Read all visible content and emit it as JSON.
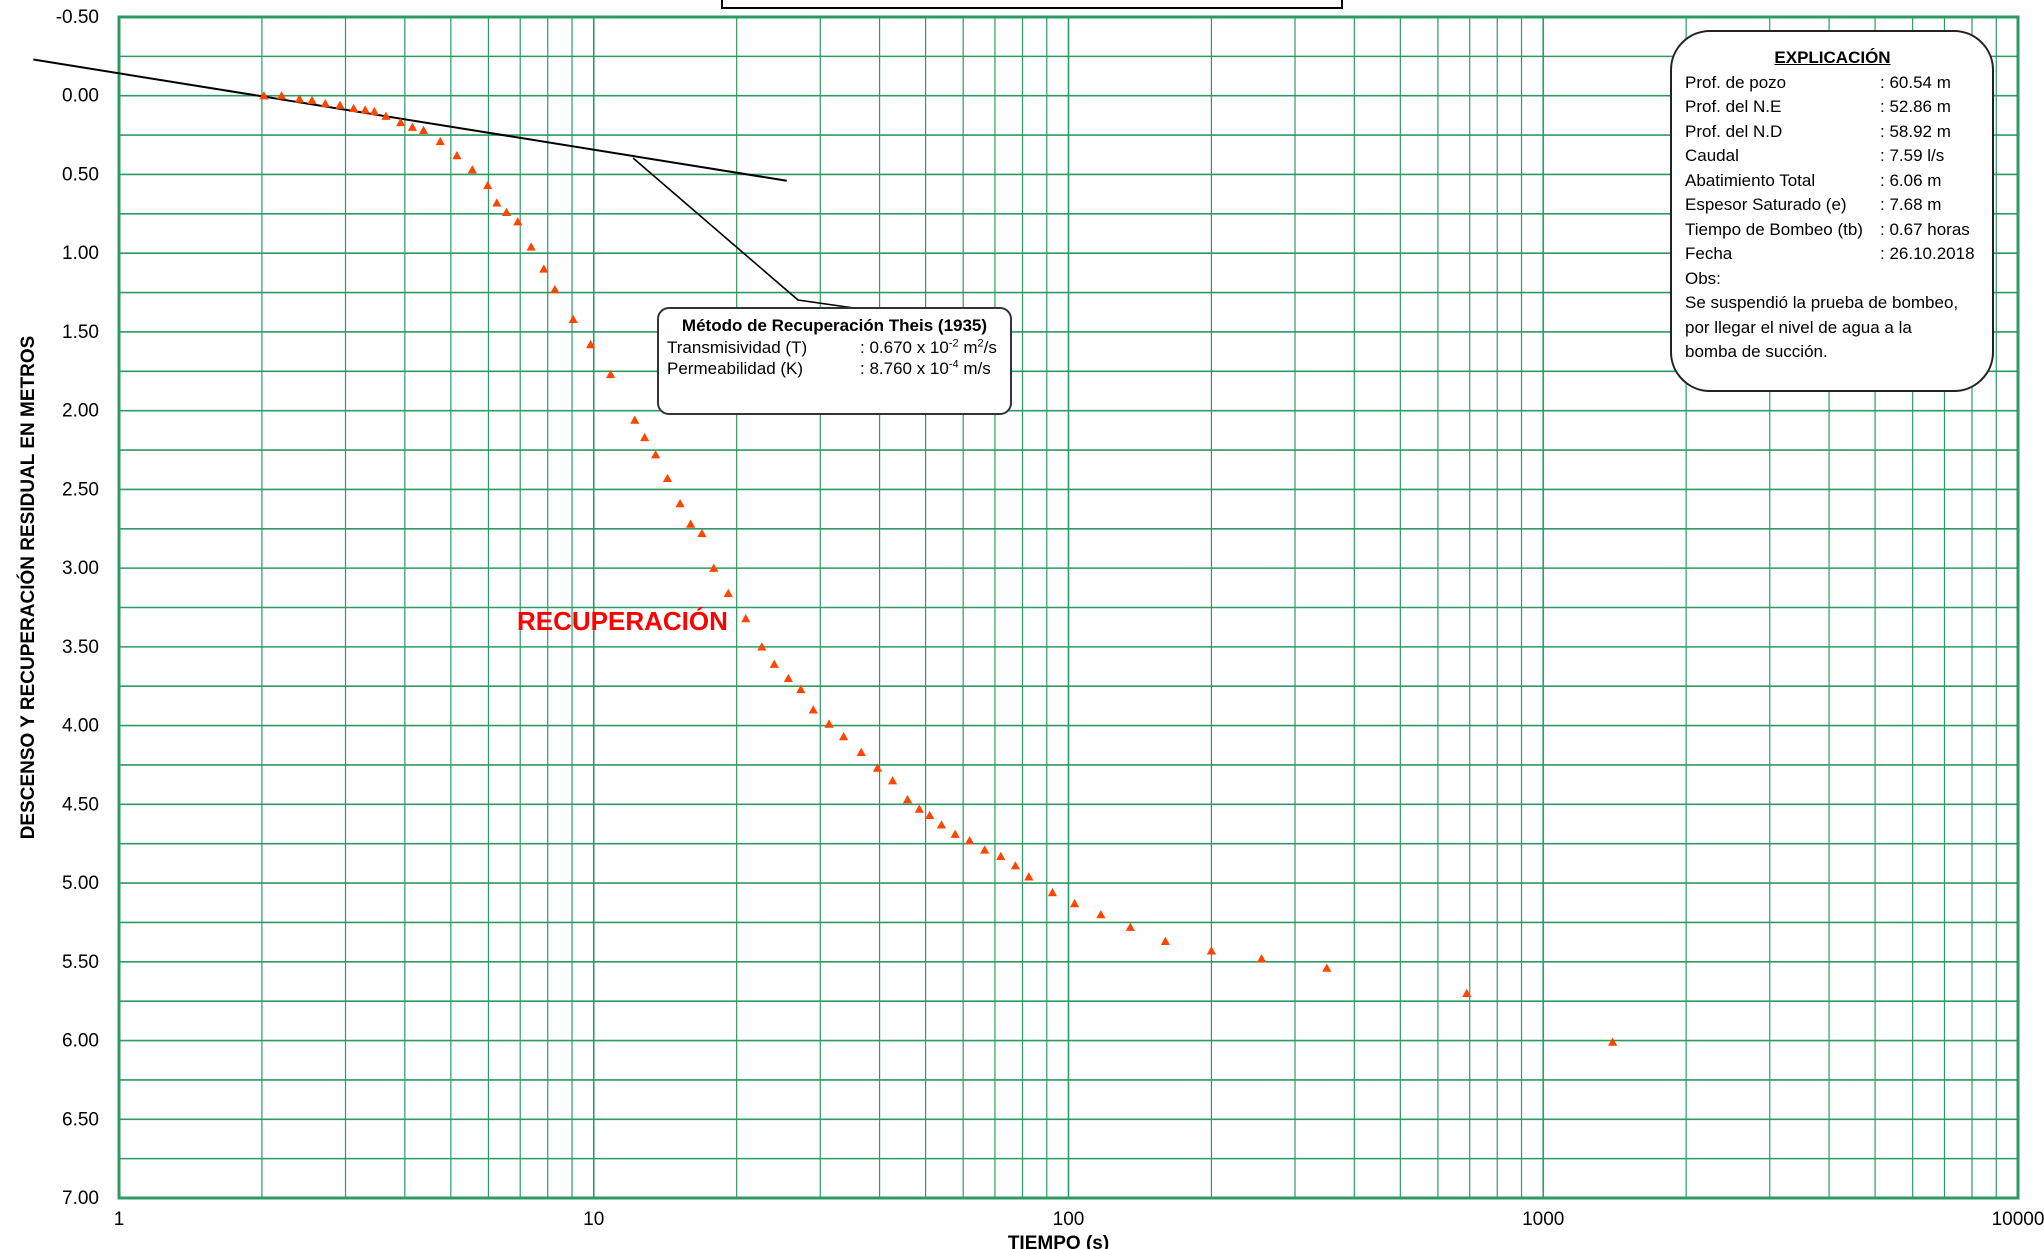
{
  "chart_data": {
    "type": "scatter",
    "title": "",
    "xlabel": "TIEMPO (s)",
    "ylabel": "DESCENSO Y RECUPERACIÓN RESIDUAL EN METROS",
    "x_scale": "log",
    "xlim": [
      1,
      10000
    ],
    "ylim": [
      -0.5,
      7.0
    ],
    "y_inverted": true,
    "x_ticks": [
      "1",
      "10",
      "100",
      "1000",
      "10000"
    ],
    "y_ticks": [
      "-0.50",
      "0.00",
      "0.50",
      "1.00",
      "1.50",
      "2.00",
      "2.50",
      "3.00",
      "3.50",
      "4.00",
      "4.50",
      "5.00",
      "5.50",
      "6.00",
      "6.50",
      "7.00"
    ],
    "grid": true,
    "grid_color": "#2e9a63",
    "marker": "triangle",
    "marker_color": "#ff4500",
    "annotation": "RECUPERACIÓN",
    "annotation_color": "#ff0000",
    "fit_line": {
      "x": [
        0.66,
        25.5
      ],
      "y": [
        -0.23,
        0.54
      ]
    },
    "series": [
      {
        "points": [
          [
            2.02,
            0.0
          ],
          [
            2.2,
            0.0
          ],
          [
            2.4,
            0.02
          ],
          [
            2.55,
            0.03
          ],
          [
            2.72,
            0.05
          ],
          [
            2.92,
            0.06
          ],
          [
            3.12,
            0.08
          ],
          [
            3.3,
            0.09
          ],
          [
            3.45,
            0.1
          ],
          [
            3.65,
            0.13
          ],
          [
            3.92,
            0.17
          ],
          [
            4.15,
            0.2
          ],
          [
            4.38,
            0.22
          ],
          [
            4.75,
            0.29
          ],
          [
            5.15,
            0.38
          ],
          [
            5.55,
            0.47
          ],
          [
            5.98,
            0.57
          ],
          [
            6.25,
            0.68
          ],
          [
            6.55,
            0.74
          ],
          [
            6.92,
            0.8
          ],
          [
            7.38,
            0.96
          ],
          [
            7.85,
            1.1
          ],
          [
            8.28,
            1.23
          ],
          [
            9.05,
            1.42
          ],
          [
            9.85,
            1.58
          ],
          [
            10.85,
            1.77
          ],
          [
            12.2,
            2.06
          ],
          [
            12.8,
            2.17
          ],
          [
            13.5,
            2.28
          ],
          [
            14.3,
            2.43
          ],
          [
            15.2,
            2.59
          ],
          [
            16.0,
            2.72
          ],
          [
            16.9,
            2.78
          ],
          [
            17.9,
            3.0
          ],
          [
            19.2,
            3.16
          ],
          [
            20.9,
            3.32
          ],
          [
            22.6,
            3.5
          ],
          [
            24.0,
            3.61
          ],
          [
            25.7,
            3.7
          ],
          [
            27.3,
            3.77
          ],
          [
            29.0,
            3.9
          ],
          [
            31.3,
            3.99
          ],
          [
            33.6,
            4.07
          ],
          [
            36.6,
            4.17
          ],
          [
            39.6,
            4.27
          ],
          [
            42.6,
            4.35
          ],
          [
            45.8,
            4.47
          ],
          [
            48.5,
            4.53
          ],
          [
            51.0,
            4.57
          ],
          [
            54.0,
            4.63
          ],
          [
            57.7,
            4.69
          ],
          [
            61.9,
            4.73
          ],
          [
            66.6,
            4.79
          ],
          [
            72.0,
            4.83
          ],
          [
            77.3,
            4.89
          ],
          [
            82.5,
            4.96
          ],
          [
            92.5,
            5.06
          ],
          [
            103.0,
            5.13
          ],
          [
            117.0,
            5.2
          ],
          [
            135.0,
            5.28
          ],
          [
            160.0,
            5.37
          ],
          [
            200.0,
            5.43
          ],
          [
            255.0,
            5.48
          ],
          [
            350.0,
            5.54
          ],
          [
            690.0,
            5.7
          ],
          [
            1400.0,
            6.01
          ]
        ]
      }
    ]
  },
  "theis_box": {
    "title": "Método de Recuperación  Theis (1935)",
    "rows": [
      {
        "label": "Transmisividad (T)",
        "value_prefix": ": 0.670 x 10",
        "exp": "-2",
        "unit_a": " m",
        "unit_exp": "2",
        "unit_b": "/s"
      },
      {
        "label": "Permeabilidad (K)",
        "value_prefix": ": 8.760 x 10",
        "exp": "-4",
        "unit_a": " m/s",
        "unit_exp": "",
        "unit_b": ""
      }
    ]
  },
  "explanation": {
    "title": "EXPLICACIÓN",
    "rows": [
      {
        "label": "Prof. de pozo",
        "value": ": 60.54  m"
      },
      {
        "label": "Prof. del N.E",
        "value": ": 52.86  m"
      },
      {
        "label": "Prof. del N.D",
        "value": ": 58.92  m"
      },
      {
        "label": "Caudal",
        "value": ": 7.59  l/s"
      },
      {
        "label": "Abatimiento Total",
        "value": ": 6.06  m"
      },
      {
        "label": "Espesor Saturado (e)",
        "value": ": 7.68  m"
      },
      {
        "label": "Tiempo de Bombeo (tb)",
        "value": ": 0.67 horas"
      },
      {
        "label": "Fecha",
        "value": ": 26.10.2018"
      }
    ],
    "obs_label": "Obs:",
    "obs_lines": [
      "Se suspendió la prueba de bombeo,",
      "por llegar el nivel de agua a la",
      "bomba de succión."
    ]
  }
}
